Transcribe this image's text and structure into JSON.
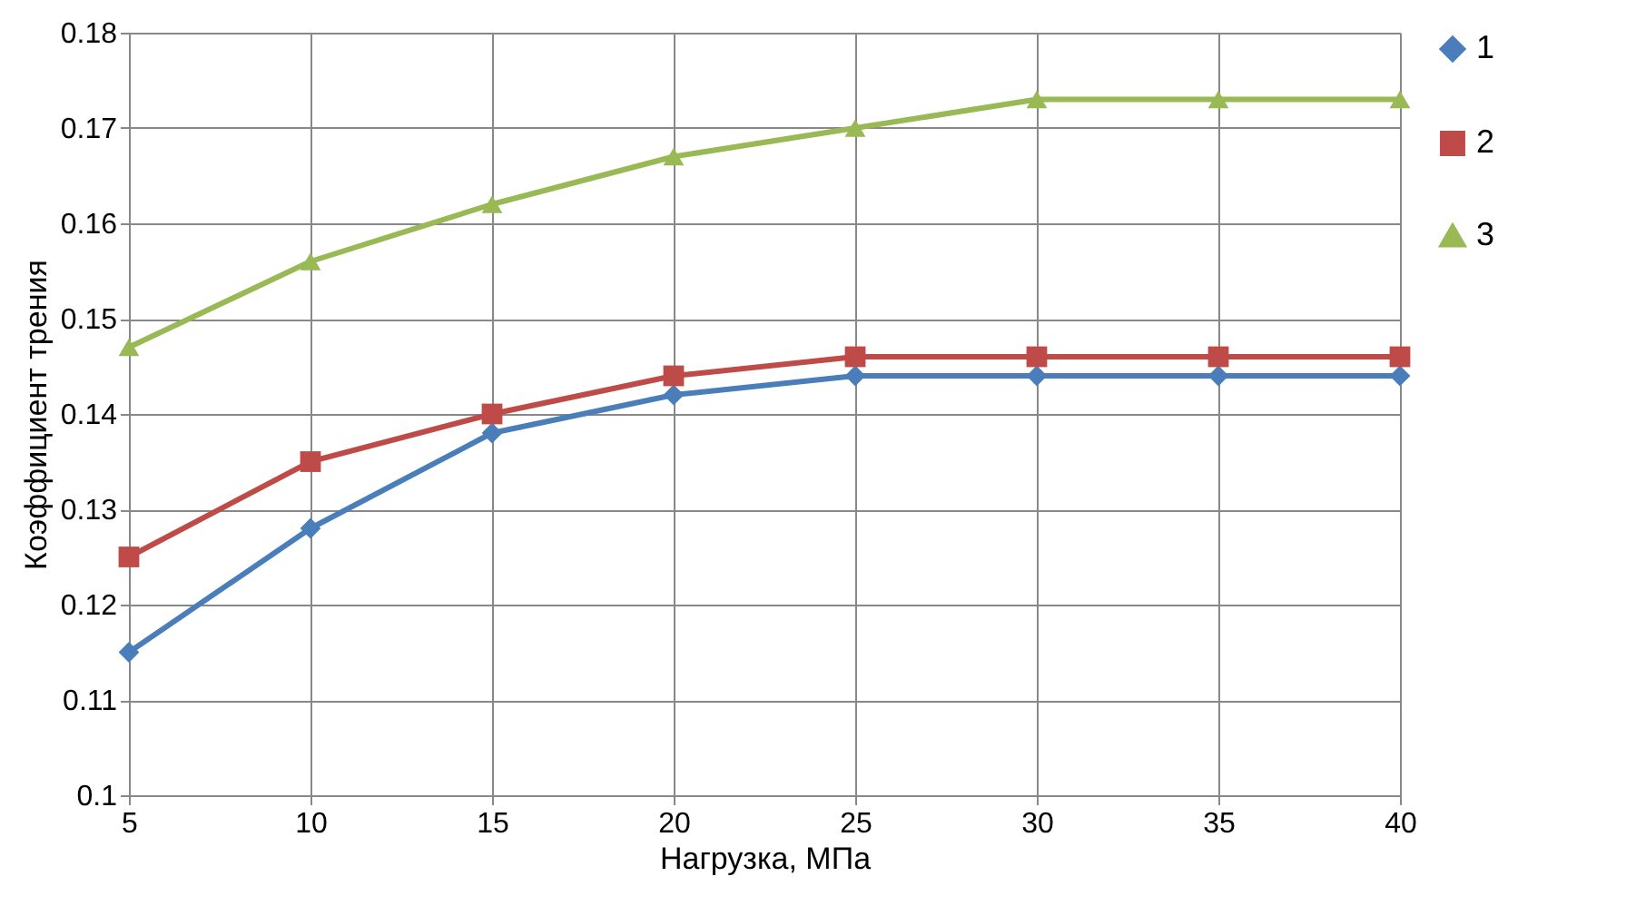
{
  "chart_data": {
    "type": "line",
    "xlabel": "Нагрузка, МПа",
    "ylabel": "Коэффициент трения",
    "x": [
      5,
      10,
      15,
      20,
      25,
      30,
      35,
      40
    ],
    "series": [
      {
        "name": "1",
        "color": "#4a7ebb",
        "marker": "diamond",
        "values": [
          0.115,
          0.128,
          0.138,
          0.142,
          0.144,
          0.144,
          0.144,
          0.144
        ]
      },
      {
        "name": "2",
        "color": "#be4b48",
        "marker": "square",
        "values": [
          0.125,
          0.135,
          0.14,
          0.144,
          0.146,
          0.146,
          0.146,
          0.146
        ]
      },
      {
        "name": "3",
        "color": "#98b954",
        "marker": "triangle",
        "values": [
          0.147,
          0.156,
          0.162,
          0.167,
          0.17,
          0.173,
          0.173,
          0.173
        ]
      }
    ],
    "xlim": [
      5,
      40
    ],
    "xticks": [
      5,
      10,
      15,
      20,
      25,
      30,
      35,
      40
    ],
    "ylim": [
      0.1,
      0.18
    ],
    "yticks": [
      0.1,
      0.11,
      0.12,
      0.13,
      0.14,
      0.15,
      0.16,
      0.17,
      0.18
    ],
    "grid": true,
    "legend": "right",
    "line_style": "solid"
  }
}
